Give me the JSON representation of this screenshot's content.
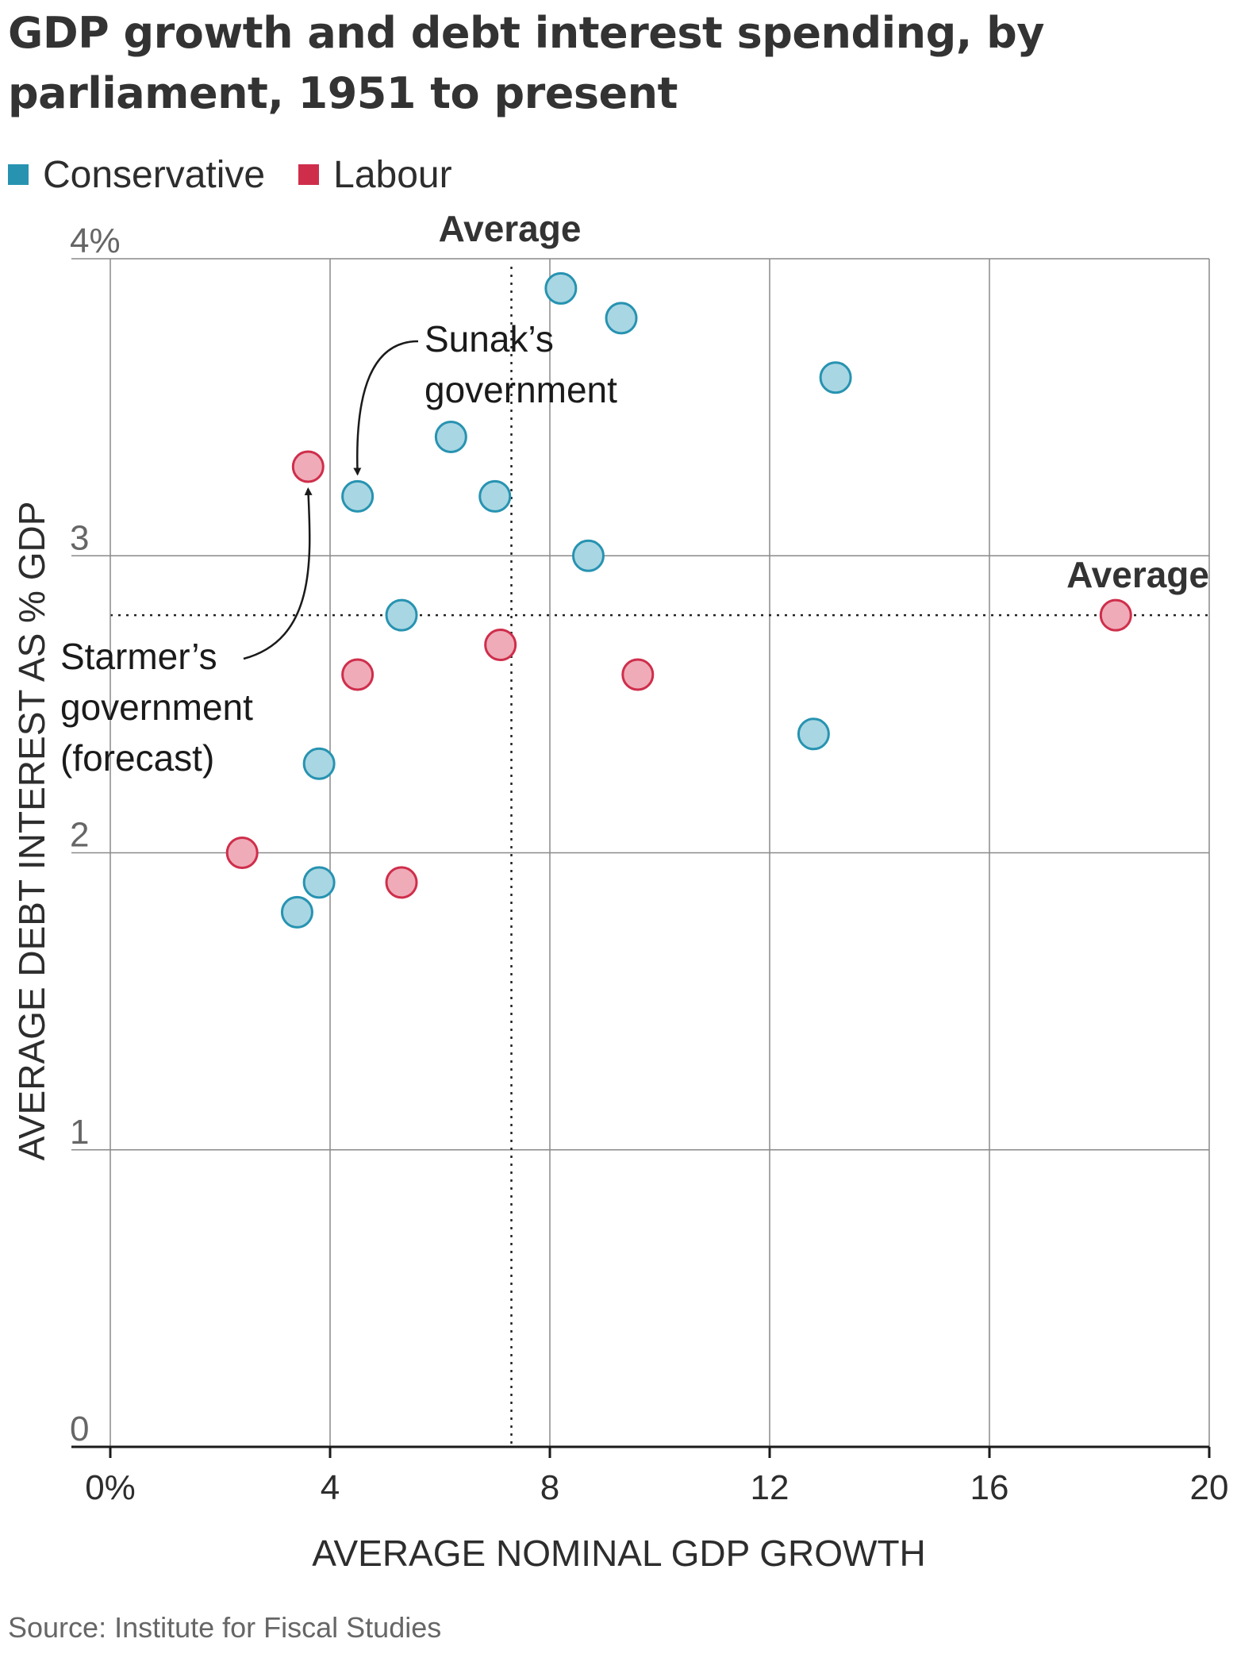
{
  "title": "GDP growth and debt interest spending, by parliament, 1951 to present",
  "source": "Source: Institute for Fiscal Studies",
  "colors": {
    "conservative_fill": "#a9d6e3",
    "conservative_stroke": "#2793b1",
    "labour_fill": "#efabb8",
    "labour_stroke": "#cf2e4b",
    "conservative_swatch": "#2793b1",
    "labour_swatch": "#cf2e4b",
    "grid": "#8a8a8a",
    "axis": "#1a1a1a"
  },
  "chart_data": {
    "type": "scatter",
    "title": "GDP growth and debt interest spending, by parliament, 1951 to present",
    "xlabel": "AVERAGE NOMINAL GDP GROWTH",
    "ylabel": "AVERAGE DEBT INTEREST AS % GDP",
    "xlim": [
      0,
      20
    ],
    "ylim": [
      0,
      4
    ],
    "x_ticks": [
      0,
      4,
      8,
      12,
      16,
      20
    ],
    "x_tick_labels": [
      "0%",
      "4",
      "8",
      "12",
      "16",
      "20"
    ],
    "y_ticks": [
      0,
      1,
      2,
      3,
      4
    ],
    "y_tick_labels": [
      "0",
      "1",
      "2",
      "3",
      "4%"
    ],
    "grid": true,
    "legend_position": "top-left",
    "series": [
      {
        "name": "Conservative",
        "points": [
          {
            "x": 8.2,
            "y": 3.9
          },
          {
            "x": 9.3,
            "y": 3.8
          },
          {
            "x": 13.2,
            "y": 3.6
          },
          {
            "x": 6.2,
            "y": 3.4
          },
          {
            "x": 4.5,
            "y": 3.2
          },
          {
            "x": 7.0,
            "y": 3.2
          },
          {
            "x": 8.7,
            "y": 3.0
          },
          {
            "x": 5.3,
            "y": 2.8
          },
          {
            "x": 12.8,
            "y": 2.4
          },
          {
            "x": 3.8,
            "y": 2.3
          },
          {
            "x": 3.8,
            "y": 1.9
          },
          {
            "x": 3.4,
            "y": 1.8
          }
        ]
      },
      {
        "name": "Labour",
        "points": [
          {
            "x": 3.6,
            "y": 3.3
          },
          {
            "x": 18.3,
            "y": 2.8
          },
          {
            "x": 7.1,
            "y": 2.7
          },
          {
            "x": 4.5,
            "y": 2.6
          },
          {
            "x": 9.6,
            "y": 2.6
          },
          {
            "x": 2.4,
            "y": 2.0
          },
          {
            "x": 5.3,
            "y": 1.9
          }
        ]
      }
    ],
    "averages": {
      "x": 7.3,
      "y": 2.8,
      "x_label": "Average",
      "y_label": "Average"
    },
    "annotations": [
      {
        "id": "sunak",
        "lines": [
          "Sunak’s",
          "government"
        ],
        "point": {
          "x": 4.5,
          "y": 3.2
        }
      },
      {
        "id": "starmer",
        "lines": [
          "Starmer’s",
          "government",
          "(forecast)"
        ],
        "point": {
          "x": 3.6,
          "y": 3.3
        }
      }
    ]
  }
}
